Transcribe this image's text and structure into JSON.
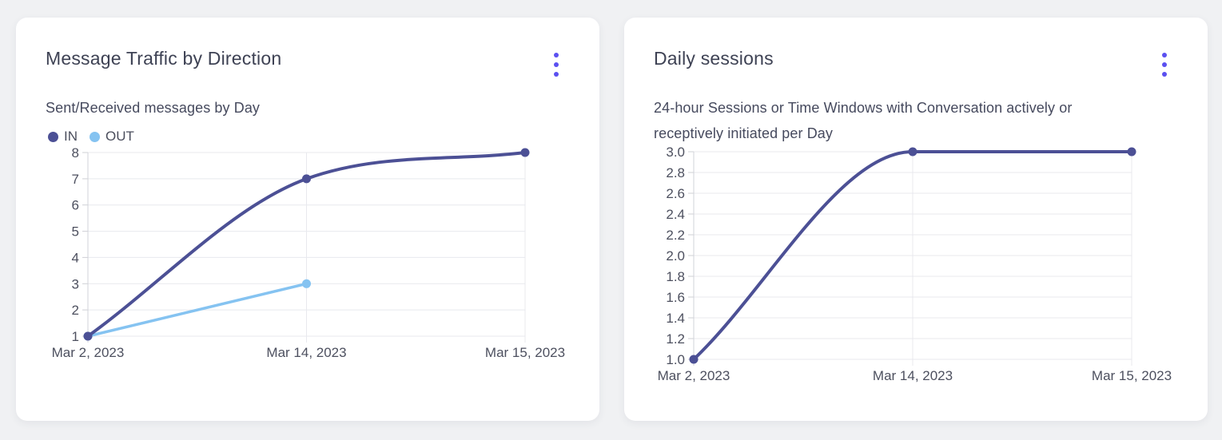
{
  "background_color": "#f0f1f3",
  "card_color": "#ffffff",
  "accent_color": "#5b50f0",
  "menu_icon": "kebab-vertical-icon",
  "chart_data": [
    {
      "type": "line",
      "title": "Message Traffic by Direction",
      "subtitle": "Sent/Received messages by Day",
      "categories": [
        "Mar 2, 2023",
        "Mar 14, 2023",
        "Mar 15, 2023"
      ],
      "series": [
        {
          "name": "IN",
          "color": "#4c5095",
          "values": [
            1,
            7,
            8
          ]
        },
        {
          "name": "OUT",
          "color": "#85c3f1",
          "values": [
            1,
            3,
            null
          ]
        }
      ],
      "ylim": [
        1,
        8
      ],
      "ytick_labels": [
        "8",
        "7",
        "6",
        "5",
        "4",
        "3",
        "2",
        "1"
      ],
      "legend": "top-left",
      "grid": true,
      "curve": "monotone"
    },
    {
      "type": "line",
      "title": "Daily sessions",
      "subtitle": "24-hour Sessions or Time Windows with Conversation actively or receptively initiated per Day",
      "categories": [
        "Mar 2, 2023",
        "Mar 14, 2023",
        "Mar 15, 2023"
      ],
      "series": [
        {
          "color": "#4c5095",
          "values": [
            1.0,
            3.0,
            3.0
          ]
        }
      ],
      "ylim": [
        1.0,
        3.0
      ],
      "ytick_labels": [
        "3.0",
        "2.8",
        "2.6",
        "2.4",
        "2.2",
        "2.0",
        "1.8",
        "1.6",
        "1.4",
        "1.2",
        "1.0"
      ],
      "legend": "none",
      "grid": true,
      "curve": "monotone"
    }
  ]
}
